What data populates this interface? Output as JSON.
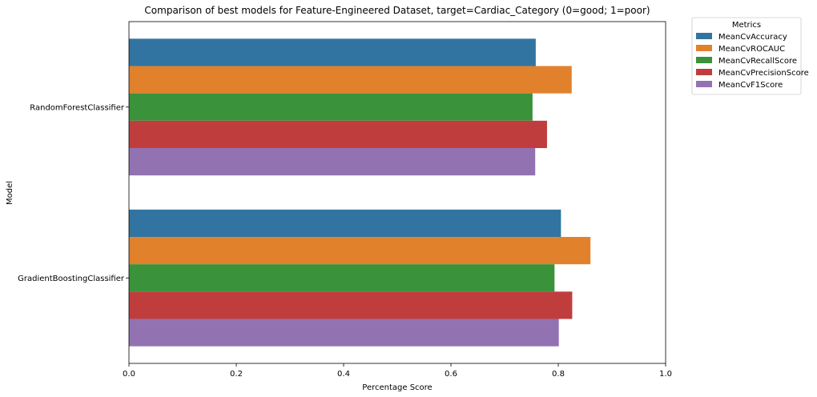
{
  "chart_data": {
    "type": "bar",
    "orientation": "horizontal",
    "title": "Comparison of best models for Feature-Engineered Dataset, target=Cardiac_Category (0=good; 1=poor)",
    "xlabel": "Percentage Score",
    "ylabel": "Model",
    "xlim": [
      0,
      1.0
    ],
    "xticks": [
      "0.0",
      "0.2",
      "0.4",
      "0.6",
      "0.8",
      "1.0"
    ],
    "categories": [
      "RandomForestClassifier",
      "GradientBoostingClassifier"
    ],
    "legend_title": "Metrics",
    "legend_position": "outside-top-right",
    "grid": false,
    "series": [
      {
        "name": "MeanCvAccuracy",
        "color": "#3274a1",
        "values": [
          0.758,
          0.805
        ]
      },
      {
        "name": "MeanCvROCAUC",
        "color": "#e1812c",
        "values": [
          0.825,
          0.86
        ]
      },
      {
        "name": "MeanCvRecallScore",
        "color": "#3a923a",
        "values": [
          0.752,
          0.793
        ]
      },
      {
        "name": "MeanCvPrecisionScore",
        "color": "#c03d3e",
        "values": [
          0.779,
          0.826
        ]
      },
      {
        "name": "MeanCvF1Score",
        "color": "#9372b2",
        "values": [
          0.757,
          0.801
        ]
      }
    ]
  }
}
